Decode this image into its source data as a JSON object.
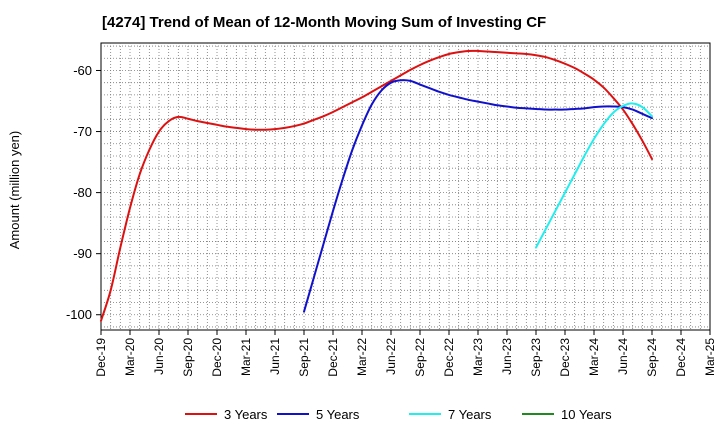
{
  "chart_data": {
    "type": "line",
    "title": "[4274]  Trend of Mean of 12-Month Moving Sum of Investing CF",
    "xlabel": "",
    "ylabel": "Amount (million yen)",
    "x_ticks": [
      "Dec-19",
      "Mar-20",
      "Jun-20",
      "Sep-20",
      "Dec-20",
      "Mar-21",
      "Jun-21",
      "Sep-21",
      "Dec-21",
      "Mar-22",
      "Jun-22",
      "Sep-22",
      "Dec-22",
      "Mar-23",
      "Jun-23",
      "Sep-23",
      "Dec-23",
      "Mar-24",
      "Jun-24",
      "Sep-24",
      "Dec-24",
      "Mar-25"
    ],
    "x_range": [
      "Dec-19",
      "Mar-25"
    ],
    "y_ticks": [
      -60,
      -70,
      -80,
      -90,
      -100
    ],
    "ylim": [
      -102.5,
      -55.5
    ],
    "grid": true,
    "legend_position": "bottom",
    "series": [
      {
        "name": "3 Years",
        "color": "#dd1111",
        "points": [
          [
            "Dec-19",
            -101
          ],
          [
            "Jan-20",
            -96
          ],
          [
            "Feb-20",
            -89
          ],
          [
            "Mar-20",
            -82.5
          ],
          [
            "Apr-20",
            -77
          ],
          [
            "May-20",
            -73
          ],
          [
            "Jun-20",
            -70
          ],
          [
            "Jul-20",
            -68.3
          ],
          [
            "Aug-20",
            -67.6
          ],
          [
            "Sep-20",
            -67.9
          ],
          [
            "Oct-20",
            -68.3
          ],
          [
            "Nov-20",
            -68.6
          ],
          [
            "Dec-20",
            -68.9
          ],
          [
            "Jan-21",
            -69.2
          ],
          [
            "Feb-21",
            -69.4
          ],
          [
            "Mar-21",
            -69.6
          ],
          [
            "Apr-21",
            -69.7
          ],
          [
            "May-21",
            -69.7
          ],
          [
            "Jun-21",
            -69.6
          ],
          [
            "Jul-21",
            -69.4
          ],
          [
            "Aug-21",
            -69.1
          ],
          [
            "Sep-21",
            -68.7
          ],
          [
            "Oct-21",
            -68.1
          ],
          [
            "Nov-21",
            -67.5
          ],
          [
            "Dec-21",
            -66.8
          ],
          [
            "Jan-22",
            -66.0
          ],
          [
            "Feb-22",
            -65.2
          ],
          [
            "Mar-22",
            -64.4
          ],
          [
            "Apr-22",
            -63.5
          ],
          [
            "May-22",
            -62.6
          ],
          [
            "Jun-22",
            -61.7
          ],
          [
            "Jul-22",
            -60.8
          ],
          [
            "Aug-22",
            -59.9
          ],
          [
            "Sep-22",
            -59.1
          ],
          [
            "Oct-22",
            -58.4
          ],
          [
            "Nov-22",
            -57.8
          ],
          [
            "Dec-22",
            -57.3
          ],
          [
            "Jan-23",
            -57.0
          ],
          [
            "Feb-23",
            -56.8
          ],
          [
            "Mar-23",
            -56.8
          ],
          [
            "Apr-23",
            -56.9
          ],
          [
            "May-23",
            -57.0
          ],
          [
            "Jun-23",
            -57.1
          ],
          [
            "Jul-23",
            -57.2
          ],
          [
            "Aug-23",
            -57.3
          ],
          [
            "Sep-23",
            -57.5
          ],
          [
            "Oct-23",
            -57.8
          ],
          [
            "Nov-23",
            -58.3
          ],
          [
            "Dec-23",
            -58.9
          ],
          [
            "Jan-24",
            -59.6
          ],
          [
            "Feb-24",
            -60.5
          ],
          [
            "Mar-24",
            -61.5
          ],
          [
            "Apr-24",
            -62.8
          ],
          [
            "May-24",
            -64.5
          ],
          [
            "Jun-24",
            -66.4
          ],
          [
            "Jul-24",
            -68.8
          ],
          [
            "Aug-24",
            -71.5
          ],
          [
            "Sep-24",
            -74.5
          ]
        ]
      },
      {
        "name": "5 Years",
        "color": "#1111cc",
        "points": [
          [
            "Sep-21",
            -99.5
          ],
          [
            "Oct-21",
            -94
          ],
          [
            "Nov-21",
            -88.5
          ],
          [
            "Dec-21",
            -83
          ],
          [
            "Jan-22",
            -77.8
          ],
          [
            "Feb-22",
            -73
          ],
          [
            "Mar-22",
            -69
          ],
          [
            "Apr-22",
            -65.6
          ],
          [
            "May-22",
            -63.3
          ],
          [
            "Jun-22",
            -62
          ],
          [
            "Jul-22",
            -61.6
          ],
          [
            "Aug-22",
            -61.7
          ],
          [
            "Sep-22",
            -62.3
          ],
          [
            "Oct-22",
            -62.9
          ],
          [
            "Nov-22",
            -63.5
          ],
          [
            "Dec-22",
            -64.0
          ],
          [
            "Jan-23",
            -64.4
          ],
          [
            "Feb-23",
            -64.8
          ],
          [
            "Mar-23",
            -65.1
          ],
          [
            "Apr-23",
            -65.4
          ],
          [
            "May-23",
            -65.7
          ],
          [
            "Jun-23",
            -65.9
          ],
          [
            "Jul-23",
            -66.1
          ],
          [
            "Aug-23",
            -66.2
          ],
          [
            "Sep-23",
            -66.3
          ],
          [
            "Oct-23",
            -66.4
          ],
          [
            "Nov-23",
            -66.4
          ],
          [
            "Dec-23",
            -66.4
          ],
          [
            "Jan-24",
            -66.3
          ],
          [
            "Feb-24",
            -66.2
          ],
          [
            "Mar-24",
            -66.0
          ],
          [
            "Apr-24",
            -65.9
          ],
          [
            "May-24",
            -65.9
          ],
          [
            "Jun-24",
            -66.0
          ],
          [
            "Jul-24",
            -66.4
          ],
          [
            "Aug-24",
            -67.1
          ],
          [
            "Sep-24",
            -67.8
          ]
        ]
      },
      {
        "name": "7 Years",
        "color": "#22eeee",
        "points": [
          [
            "Sep-23",
            -89
          ],
          [
            "Oct-23",
            -86
          ],
          [
            "Nov-23",
            -83
          ],
          [
            "Dec-23",
            -80
          ],
          [
            "Jan-24",
            -77
          ],
          [
            "Feb-24",
            -74
          ],
          [
            "Mar-24",
            -71.2
          ],
          [
            "Apr-24",
            -68.8
          ],
          [
            "May-24",
            -66.9
          ],
          [
            "Jun-24",
            -65.8
          ],
          [
            "Jul-24",
            -65.4
          ],
          [
            "Aug-24",
            -66.0
          ],
          [
            "Sep-24",
            -67.5
          ]
        ]
      },
      {
        "name": "10 Years",
        "color": "#228822",
        "points": []
      }
    ]
  }
}
